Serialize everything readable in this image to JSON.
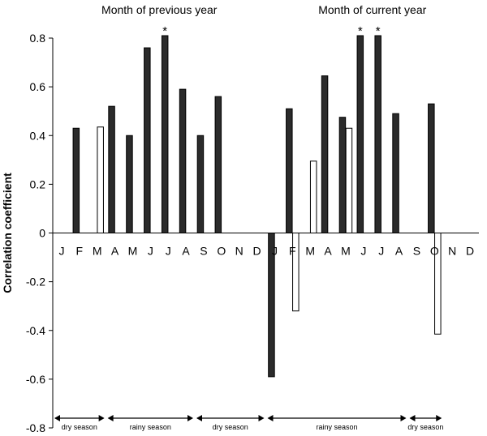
{
  "chart_data": {
    "type": "bar",
    "ylabel": "Correlation coefficient",
    "ylim": [
      -0.8,
      0.8
    ],
    "yticks": [
      -0.8,
      -0.6,
      -0.4,
      -0.2,
      0,
      0.2,
      0.4,
      0.6,
      0.8
    ],
    "grid": false,
    "groups": [
      {
        "title": "Month of previous year",
        "categories": [
          "J",
          "F",
          "M",
          "A",
          "M",
          "J",
          "J",
          "A",
          "S",
          "O",
          "N",
          "D"
        ]
      },
      {
        "title": "Month of current year",
        "categories": [
          "J",
          "F",
          "M",
          "A",
          "M",
          "J",
          "J",
          "A",
          "S",
          "O",
          "N",
          "D"
        ]
      }
    ],
    "series": [
      {
        "fill": "#2b2b2b",
        "values": [
          null,
          0.43,
          null,
          0.52,
          0.4,
          0.76,
          0.81,
          0.59,
          0.4,
          0.56,
          null,
          null,
          -0.59,
          0.51,
          null,
          0.645,
          0.475,
          0.81,
          0.81,
          0.49,
          null,
          0.53,
          null,
          null
        ]
      },
      {
        "fill": "#ffffff",
        "values": [
          null,
          null,
          0.435,
          null,
          null,
          null,
          null,
          null,
          null,
          null,
          null,
          null,
          null,
          -0.32,
          0.295,
          null,
          0.43,
          null,
          null,
          null,
          null,
          -0.415,
          null,
          null
        ]
      }
    ],
    "significance": [
      {
        "group": 0,
        "month": 6,
        "label": "*"
      },
      {
        "group": 1,
        "month": 5,
        "label": "*"
      },
      {
        "group": 1,
        "month": 6,
        "label": "*"
      }
    ],
    "seasons": [
      {
        "label": "dry season",
        "from": 0,
        "to": 2
      },
      {
        "label": "rainy season",
        "from": 3,
        "to": 7
      },
      {
        "label": "dry season",
        "from": 8,
        "to": 11
      },
      {
        "label": "rainy season",
        "from": 12,
        "to": 19
      },
      {
        "label": "dry season",
        "from": 20,
        "to": 21
      }
    ]
  }
}
